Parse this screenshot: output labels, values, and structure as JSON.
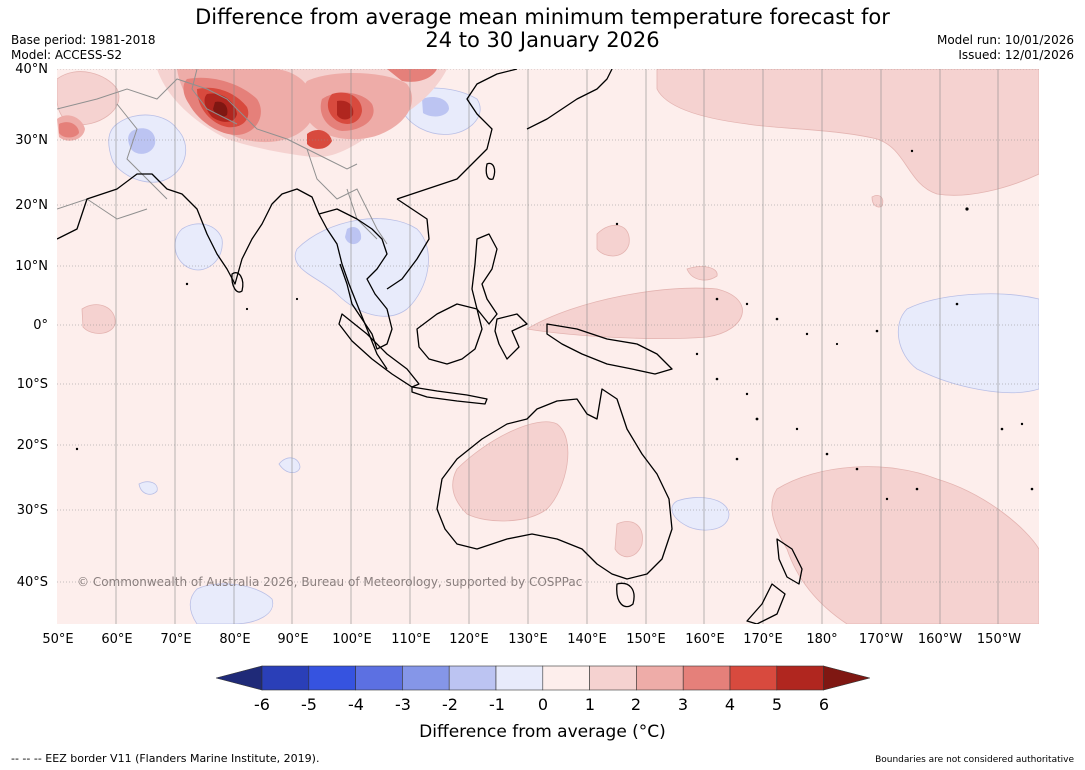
{
  "title_line1": "Difference from average mean minimum temperature forecast for",
  "title_line2": "24 to 30 January 2026",
  "base_period": "Base period: 1981-2018",
  "model": "Model: ACCESS-S2",
  "model_run": "Model run: 10/01/2026",
  "issued": "Issued: 12/01/2026",
  "lat_labels": [
    "40°N",
    "30°N",
    "20°N",
    "10°N",
    "0°",
    "10°S",
    "20°S",
    "30°S",
    "40°S"
  ],
  "lon_labels": [
    "50°E",
    "60°E",
    "70°E",
    "80°E",
    "90°E",
    "100°E",
    "110°E",
    "120°E",
    "130°E",
    "140°E",
    "150°E",
    "160°E",
    "170°E",
    "180°",
    "170°W",
    "160°W",
    "150°W"
  ],
  "copyright": "© Commonwealth of Australia 2026, Bureau of Meteorology, supported by COSPPac",
  "colorbar": {
    "ticks": [
      "-6",
      "-5",
      "-4",
      "-3",
      "-2",
      "-1",
      "0",
      "1",
      "2",
      "3",
      "4",
      "5",
      "6"
    ],
    "colors": [
      "#1f2a78",
      "#2a3fb8",
      "#3653e0",
      "#5c70e2",
      "#8596e8",
      "#bcc4f2",
      "#e8ebfb",
      "#fdeeec",
      "#f5d2d0",
      "#eeaca8",
      "#e5807a",
      "#d84a3e",
      "#b0261f",
      "#7f1712"
    ],
    "label": "Difference from average (°C)"
  },
  "footer_left": "--  --  -- EEZ border V11 (Flanders Marine Institute, 2019).",
  "footer_right": "Boundaries are not considered authoritative",
  "palette": {
    "base": "#fdeeec",
    "pale_blue": "#e8ebfb",
    "light_blue": "#bcc4f2",
    "light_red": "#f5d2d0",
    "red2": "#eeaca8",
    "red3": "#e5807a",
    "red4": "#d84a3e",
    "red5": "#b0261f",
    "red6": "#7f1712"
  }
}
